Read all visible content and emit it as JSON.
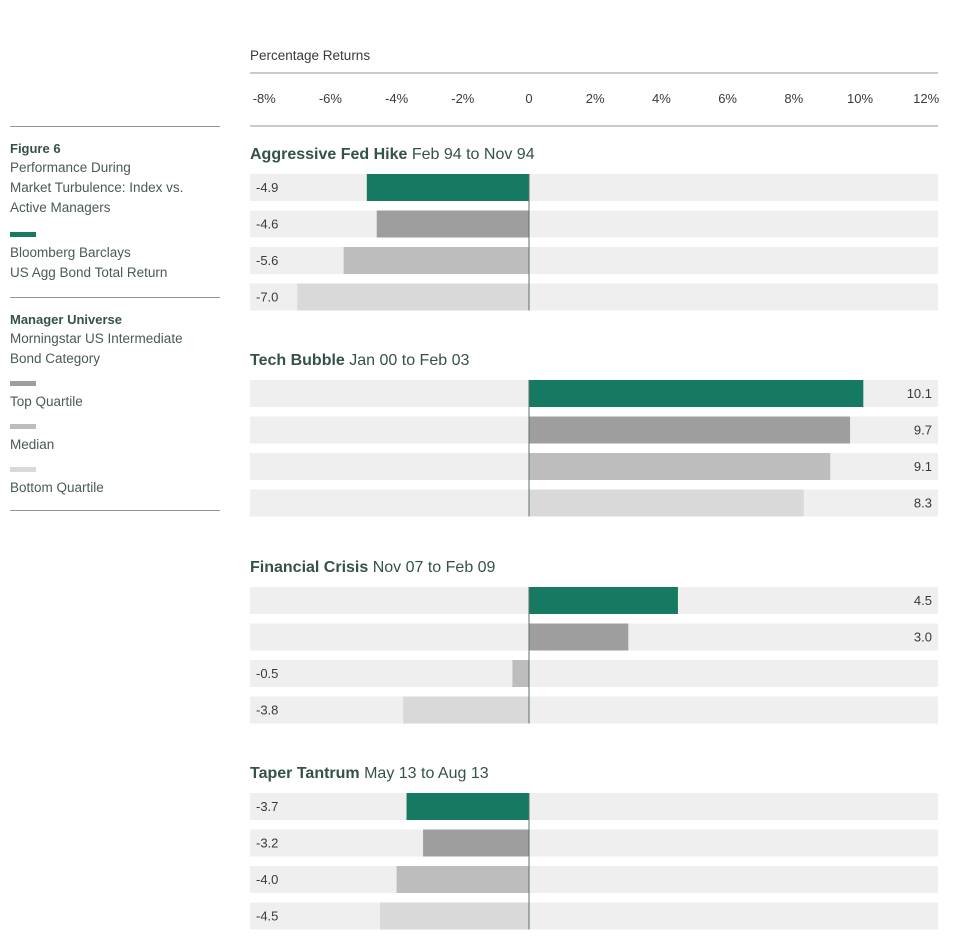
{
  "legend": {
    "figure_label": "Figure 6",
    "figure_title_lines": [
      "Performance During",
      "Market Turbulence: Index vs.",
      "Active Managers"
    ],
    "index_lines": [
      "Bloomberg Barclays",
      "US Agg Bond Total Return"
    ],
    "universe_title": "Manager Universe",
    "universe_lines": [
      "Morningstar US Intermediate",
      "Bond Category"
    ],
    "top_quartile": "Top Quartile",
    "median": "Median",
    "bottom_quartile": "Bottom Quartile"
  },
  "chart_data": {
    "type": "bar",
    "orientation": "horizontal",
    "xlabel": "Percentage Returns",
    "xlim": [
      -8,
      12
    ],
    "xticks": [
      -8,
      -6,
      -4,
      -2,
      0,
      2,
      4,
      6,
      8,
      10,
      12
    ],
    "xtick_labels": [
      "-8%",
      "-6%",
      "-4%",
      "-2%",
      "0",
      "2%",
      "4%",
      "6%",
      "8%",
      "10%",
      "12%"
    ],
    "series": [
      {
        "name": "Bloomberg Barclays US Agg Bond Total Return",
        "color": "#157a61"
      },
      {
        "name": "Top Quartile",
        "color": "#9e9e9e"
      },
      {
        "name": "Median",
        "color": "#bdbdbd"
      },
      {
        "name": "Bottom Quartile",
        "color": "#d9d9d9"
      }
    ],
    "groups": [
      {
        "title_bold": "Aggressive Fed Hike",
        "title_rest": "Feb 94 to Nov 94",
        "values": [
          -4.9,
          -4.6,
          -5.6,
          -7.0
        ],
        "labels": [
          "-4.9",
          "-4.6",
          "-5.6",
          "-7.0"
        ]
      },
      {
        "title_bold": "Tech Bubble",
        "title_rest": "Jan 00 to Feb 03",
        "values": [
          10.1,
          9.7,
          9.1,
          8.3
        ],
        "labels": [
          "10.1",
          "9.7",
          "9.1",
          "8.3"
        ]
      },
      {
        "title_bold": "Financial Crisis",
        "title_rest": "Nov 07 to Feb 09",
        "values": [
          4.5,
          3.0,
          -0.5,
          -3.8
        ],
        "labels": [
          "4.5",
          "3.0",
          "-0.5",
          "-3.8"
        ]
      },
      {
        "title_bold": "Taper Tantrum",
        "title_rest": "May 13 to Aug 13",
        "values": [
          -3.7,
          -3.2,
          -4.0,
          -4.5
        ],
        "labels": [
          "-3.7",
          "-3.2",
          "-4.0",
          "-4.5"
        ]
      }
    ]
  }
}
